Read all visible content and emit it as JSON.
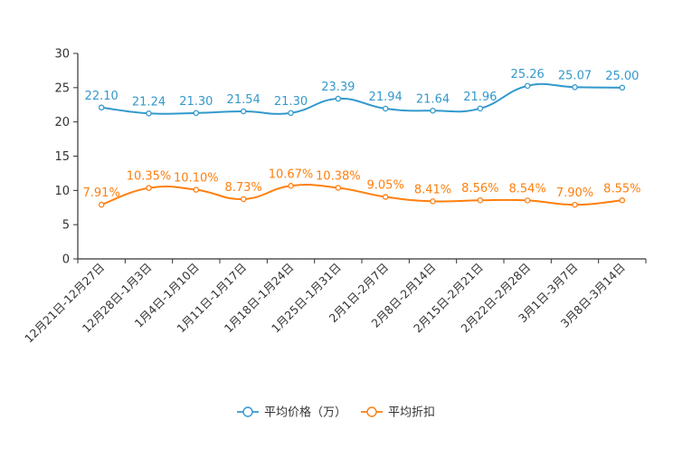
{
  "chart_data": {
    "type": "line",
    "categories": [
      "12月21日-12月27日",
      "12月28日-1月3日",
      "1月4日-1月10日",
      "1月11日-1月17日",
      "1月18日-1月24日",
      "1月25日-1月31日",
      "2月1日-2月7日",
      "2月8日-2月14日",
      "2月15日-2月21日",
      "2月22日-2月28日",
      "3月1日-3月7日",
      "3月8日-3月14日"
    ],
    "ylim": [
      0,
      30
    ],
    "yticks": [
      0,
      5,
      10,
      15,
      20,
      25,
      30
    ],
    "series": [
      {
        "name": "平均价格（万）",
        "color": "#3399cc",
        "values": [
          22.1,
          21.24,
          21.3,
          21.54,
          21.3,
          23.39,
          21.94,
          21.64,
          21.96,
          25.26,
          25.07,
          25.0
        ],
        "labels": [
          "22.10",
          "21.24",
          "21.30",
          "21.54",
          "21.30",
          "23.39",
          "21.94",
          "21.64",
          "21.96",
          "25.26",
          "25.07",
          "25.00"
        ]
      },
      {
        "name": "平均折扣",
        "color": "#ff7f0e",
        "values": [
          7.91,
          10.35,
          10.1,
          8.73,
          10.67,
          10.38,
          9.05,
          8.41,
          8.56,
          8.54,
          7.9,
          8.55
        ],
        "labels": [
          "7.91%",
          "10.35%",
          "10.10%",
          "8.73%",
          "10.67%",
          "10.38%",
          "9.05%",
          "8.41%",
          "8.56%",
          "8.54%",
          "7.90%",
          "8.55%"
        ]
      }
    ],
    "legend_position": "bottom-center",
    "grid": false
  }
}
